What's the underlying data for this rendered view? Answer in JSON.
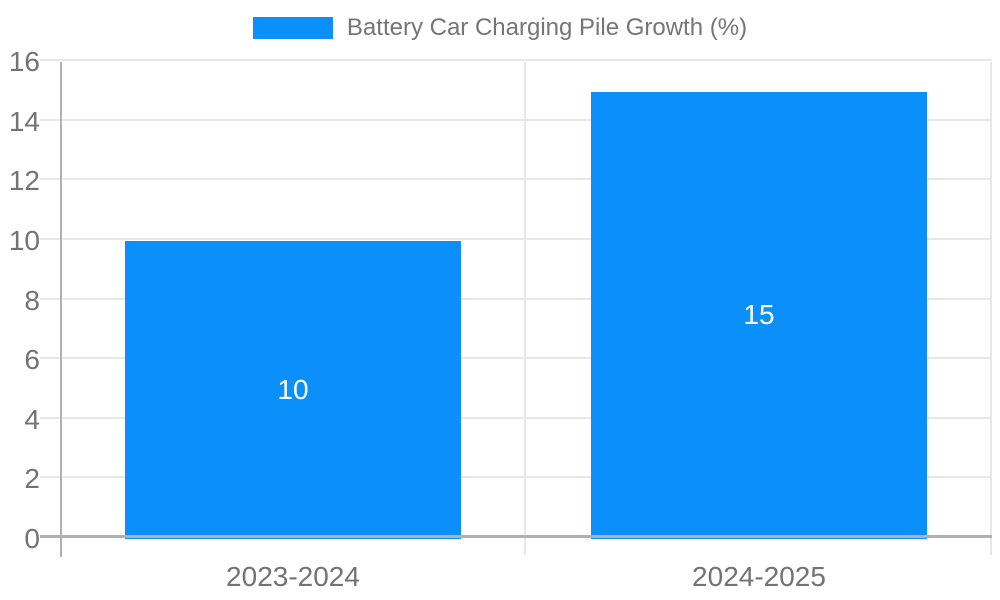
{
  "chart_data": {
    "type": "bar",
    "title": "",
    "categories": [
      "2023-2024",
      "2024-2025"
    ],
    "series": [
      {
        "name": "Battery Car Charging Pile Growth (%)",
        "values": [
          10,
          15
        ],
        "color": "#0b90fb"
      }
    ],
    "data_labels": [
      "10",
      "15"
    ],
    "data_label_color": "#ffffff",
    "xlabel": "",
    "ylabel": "",
    "ylim": [
      0,
      16
    ],
    "ytick_step": 2,
    "ytick_labels": [
      "0",
      "2",
      "4",
      "6",
      "8",
      "10",
      "12",
      "14",
      "16"
    ],
    "grid": true,
    "legend_position": "top-center",
    "colors": {
      "bar": "#0b90fb",
      "gridline": "#e7e7e7",
      "axis": "#b0b0b0",
      "tick_text": "#737373",
      "legend_text": "#757575",
      "background": "#ffffff"
    },
    "bar_band_fraction": 0.72
  }
}
